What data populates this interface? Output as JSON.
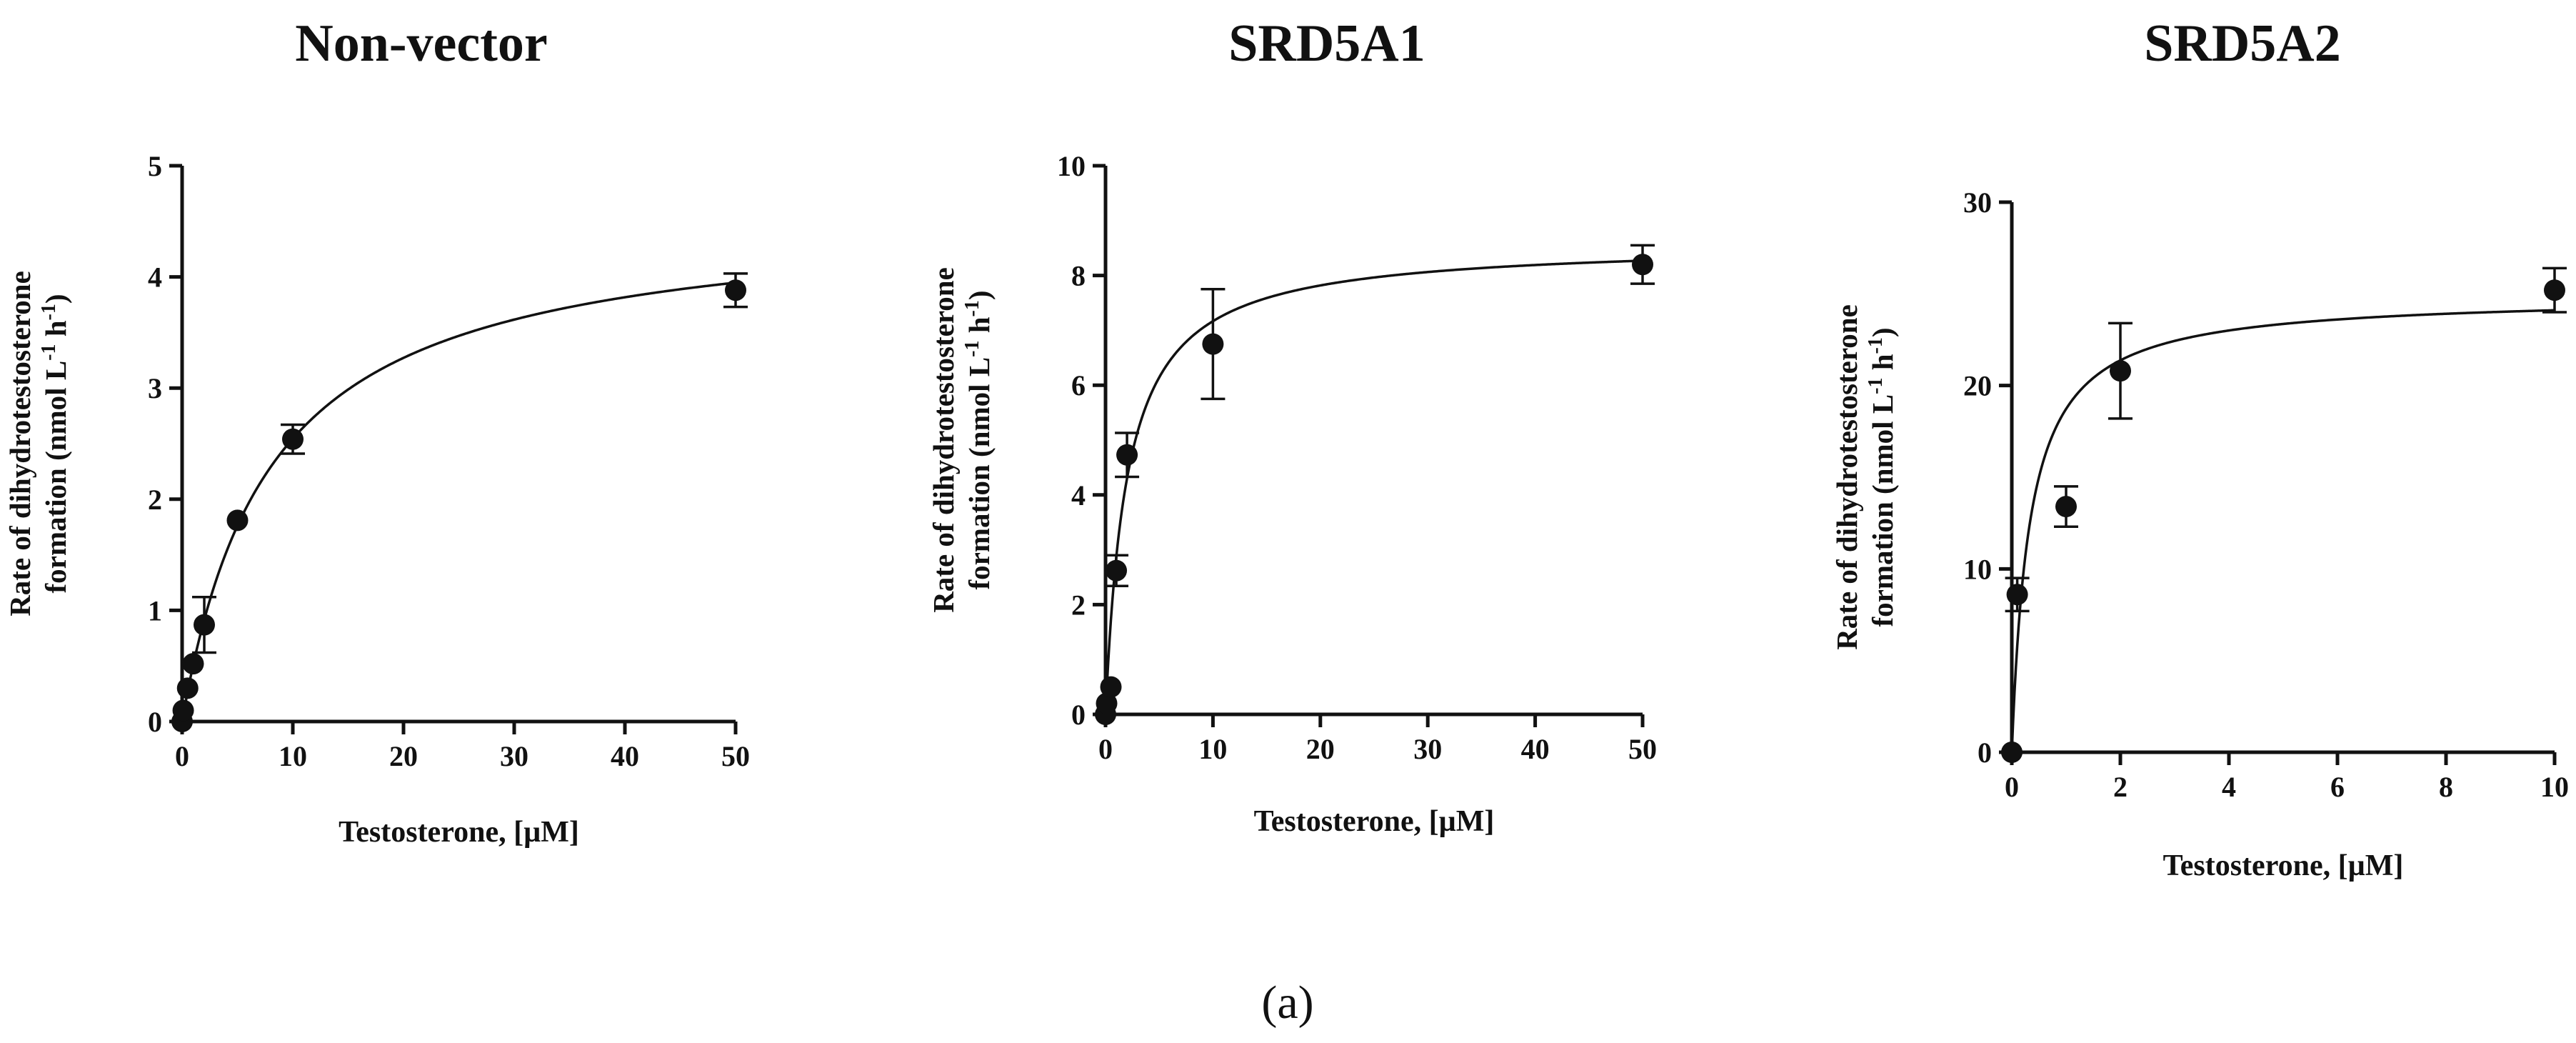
{
  "chart_data": [
    {
      "type": "scatter",
      "title": "Non-vector",
      "xlabel": "Testosterone, [µM]",
      "ylabel_line1": "Rate of dihydrotestosterone",
      "ylabel_line2_prefix": "formation (nmol L",
      "ylabel_sup1": "-1",
      "ylabel_mid": " h",
      "ylabel_sup2": "-1",
      "ylabel_suffix": ")",
      "xlim": [
        0,
        50
      ],
      "ylim": [
        0,
        5
      ],
      "xticks": [
        0,
        10,
        20,
        30,
        40,
        50
      ],
      "yticks": [
        0,
        1,
        2,
        3,
        4,
        5
      ],
      "points": [
        {
          "x": 0,
          "y": 0.0,
          "err": 0
        },
        {
          "x": 0.1,
          "y": 0.1,
          "err": 0
        },
        {
          "x": 0.5,
          "y": 0.3,
          "err": 0
        },
        {
          "x": 1,
          "y": 0.52,
          "err": 0
        },
        {
          "x": 2,
          "y": 0.87,
          "err": 0.25
        },
        {
          "x": 5,
          "y": 1.81,
          "err": 0
        },
        {
          "x": 10,
          "y": 2.54,
          "err": 0.13
        },
        {
          "x": 50,
          "y": 3.88,
          "err": 0.15
        }
      ],
      "fit": {
        "model": "michaelis-menten",
        "vmax": 4.58,
        "km": 8.0
      }
    },
    {
      "type": "scatter",
      "title": "SRD5A1",
      "xlabel": "Testosterone, [µM]",
      "ylabel_line1": "Rate of dihydrotestosterone",
      "ylabel_line2_prefix": "formation (nmol L",
      "ylabel_sup1": "-1",
      "ylabel_mid": " h",
      "ylabel_sup2": "-1",
      "ylabel_suffix": ")",
      "xlim": [
        0,
        50
      ],
      "ylim": [
        0,
        10
      ],
      "xticks": [
        0,
        10,
        20,
        30,
        40,
        50
      ],
      "yticks": [
        0,
        2,
        4,
        6,
        8,
        10
      ],
      "points": [
        {
          "x": 0,
          "y": 0.0,
          "err": 0
        },
        {
          "x": 0.1,
          "y": 0.2,
          "err": 0
        },
        {
          "x": 0.5,
          "y": 0.5,
          "err": 0
        },
        {
          "x": 1,
          "y": 2.62,
          "err": 0.28
        },
        {
          "x": 2,
          "y": 4.73,
          "err": 0.4
        },
        {
          "x": 10,
          "y": 6.75,
          "err": 1.0
        },
        {
          "x": 50,
          "y": 8.2,
          "err": 0.35
        }
      ],
      "fit": {
        "model": "michaelis-menten",
        "vmax": 8.6,
        "km": 2.0
      }
    },
    {
      "type": "scatter",
      "title": "SRD5A2",
      "xlabel": "Testosterone, [µM]",
      "ylabel_line1": "Rate of dihydrotestosterone",
      "ylabel_line2_prefix": "formation (nmol L",
      "ylabel_sup1": "-1",
      "ylabel_mid": " h",
      "ylabel_sup2": "-1",
      "ylabel_suffix": ")",
      "xlim": [
        0,
        10
      ],
      "ylim": [
        0,
        30
      ],
      "xticks": [
        0,
        2,
        4,
        6,
        8,
        10
      ],
      "yticks": [
        0,
        10,
        20,
        30
      ],
      "points": [
        {
          "x": 0,
          "y": 0.0,
          "err": 0
        },
        {
          "x": 0.1,
          "y": 8.6,
          "err": 0.9
        },
        {
          "x": 1,
          "y": 13.4,
          "err": 1.1
        },
        {
          "x": 2,
          "y": 20.8,
          "err": 2.6
        },
        {
          "x": 10,
          "y": 25.2,
          "err": 1.2
        }
      ],
      "fit": {
        "model": "michaelis-menten",
        "vmax": 24.9,
        "km": 0.33
      }
    }
  ],
  "caption": "(a)"
}
